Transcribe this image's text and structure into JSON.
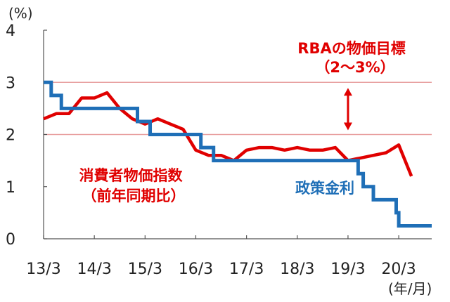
{
  "chart_data": {
    "type": "line",
    "y_unit": "(%)",
    "x_unit": "(年/月)",
    "xlim": [
      2013.25,
      2020.9
    ],
    "ylim": [
      0,
      4
    ],
    "y_ticks": [
      0,
      1,
      2,
      3,
      4
    ],
    "y_tick_labels": [
      "0",
      "1",
      "2",
      "3",
      "4"
    ],
    "x_ticks": [
      2013.25,
      2014.25,
      2015.25,
      2016.25,
      2017.25,
      2018.25,
      2019.25,
      2020.25
    ],
    "x_tick_labels": [
      "13/3",
      "14/3",
      "15/3",
      "16/3",
      "17/3",
      "18/3",
      "19/3",
      "20/3"
    ],
    "grid": false,
    "reference_lines": [
      2,
      3
    ],
    "target_band": {
      "label_line1": "RBAの物価目標",
      "label_line2": "（2～3%）",
      "low": 2,
      "high": 3,
      "x": 2019.25
    },
    "series": [
      {
        "key": "cpi",
        "label_line1": "消費者物価指数",
        "label_line2": "（前年同期比）",
        "color": "#e00000",
        "style": "line",
        "points": [
          [
            2013.25,
            2.3
          ],
          [
            2013.5,
            2.4
          ],
          [
            2013.75,
            2.4
          ],
          [
            2014.0,
            2.7
          ],
          [
            2014.25,
            2.7
          ],
          [
            2014.5,
            2.8
          ],
          [
            2014.75,
            2.5
          ],
          [
            2015.0,
            2.3
          ],
          [
            2015.25,
            2.2
          ],
          [
            2015.5,
            2.3
          ],
          [
            2015.75,
            2.2
          ],
          [
            2016.0,
            2.1
          ],
          [
            2016.25,
            1.7
          ],
          [
            2016.5,
            1.6
          ],
          [
            2016.75,
            1.6
          ],
          [
            2017.0,
            1.5
          ],
          [
            2017.25,
            1.7
          ],
          [
            2017.5,
            1.75
          ],
          [
            2017.75,
            1.75
          ],
          [
            2018.0,
            1.7
          ],
          [
            2018.25,
            1.75
          ],
          [
            2018.5,
            1.7
          ],
          [
            2018.75,
            1.7
          ],
          [
            2019.0,
            1.75
          ],
          [
            2019.25,
            1.5
          ],
          [
            2019.5,
            1.55
          ],
          [
            2019.75,
            1.6
          ],
          [
            2020.0,
            1.65
          ],
          [
            2020.25,
            1.8
          ],
          [
            2020.5,
            1.2
          ]
        ]
      },
      {
        "key": "policy_rate",
        "label": "政策金利",
        "color": "#1f6fb7",
        "style": "step",
        "points": [
          [
            2013.25,
            3.0
          ],
          [
            2013.4,
            2.75
          ],
          [
            2013.6,
            2.5
          ],
          [
            2015.1,
            2.25
          ],
          [
            2015.35,
            2.0
          ],
          [
            2016.35,
            1.75
          ],
          [
            2016.6,
            1.5
          ],
          [
            2019.45,
            1.25
          ],
          [
            2019.55,
            1.0
          ],
          [
            2019.75,
            0.75
          ],
          [
            2020.2,
            0.5
          ],
          [
            2020.25,
            0.25
          ],
          [
            2020.9,
            0.25
          ]
        ]
      }
    ]
  }
}
